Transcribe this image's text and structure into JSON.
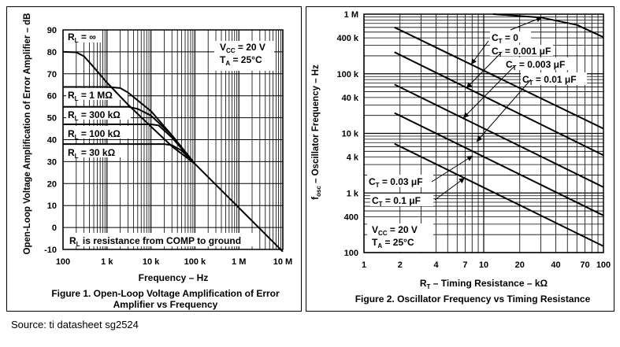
{
  "source": "Source: ti datasheet sg2524",
  "chart_data": [
    {
      "type": "line",
      "caption": [
        "Figure 1. Open-Loop Voltage Amplification of Error",
        "Amplifier vs Frequency"
      ],
      "xlabel": "Frequency – Hz",
      "ylabel": "Open-Loop Voltage Amplification of Error Amplifier – dB",
      "x_scale": "log",
      "xlim": [
        100,
        10000000
      ],
      "ylim": [
        -10,
        90
      ],
      "x_ticks": [
        {
          "v": 100,
          "label": "100"
        },
        {
          "v": 1000,
          "label": "1 k"
        },
        {
          "v": 10000,
          "label": "10 k"
        },
        {
          "v": 100000,
          "label": "100 k"
        },
        {
          "v": 1000000,
          "label": "1 M"
        },
        {
          "v": 10000000,
          "label": "10 M"
        }
      ],
      "y_ticks": [
        -10,
        0,
        10,
        20,
        30,
        40,
        50,
        60,
        70,
        80,
        90
      ],
      "grid": true,
      "series": [
        {
          "name": "RL = ∞",
          "points": [
            [
              100,
              80
            ],
            [
              200,
              79.8
            ],
            [
              300,
              78
            ],
            [
              500,
              73
            ],
            [
              1000,
              66
            ],
            [
              3000,
              56
            ],
            [
              10000,
              46
            ],
            [
              30000,
              37
            ],
            [
              100000,
              29
            ],
            [
              1000000,
              9
            ],
            [
              10000000,
              -11
            ]
          ]
        },
        {
          "name": "RL = 1 MΩ",
          "points": [
            [
              100,
              64
            ],
            [
              1000,
              64
            ],
            [
              2000,
              63.5
            ],
            [
              3000,
              61.5
            ],
            [
              10000,
              53
            ],
            [
              30000,
              42
            ],
            [
              100000,
              29
            ]
          ]
        },
        {
          "name": "RL = 300 kΩ",
          "points": [
            [
              100,
              55
            ],
            [
              3000,
              55
            ],
            [
              5000,
              54
            ],
            [
              10000,
              51
            ],
            [
              30000,
              42
            ],
            [
              100000,
              29
            ]
          ]
        },
        {
          "name": "RL = 100 kΩ",
          "points": [
            [
              100,
              47
            ],
            [
              10000,
              47
            ],
            [
              15000,
              46.5
            ],
            [
              30000,
              41
            ],
            [
              100000,
              29
            ]
          ]
        },
        {
          "name": "RL = 30 kΩ",
          "points": [
            [
              100,
              38
            ],
            [
              20000,
              38
            ],
            [
              30000,
              37.5
            ],
            [
              50000,
              35
            ],
            [
              100000,
              29
            ]
          ]
        }
      ],
      "labels": {
        "rl_inf": [
          "R",
          "L",
          " = ∞"
        ],
        "rl_1m": [
          "R",
          "L",
          " = 1 MΩ"
        ],
        "rl_300k": [
          "R",
          "L",
          " = 300 kΩ"
        ],
        "rl_100k": [
          "R",
          "L",
          " = 100 kΩ"
        ],
        "rl_30k": [
          "R",
          "L",
          " = 30 kΩ"
        ],
        "note": [
          "R",
          "L",
          " is resistance from COMP to ground"
        ],
        "vcc": [
          "V",
          "CC",
          " = 20 V"
        ],
        "ta": [
          "T",
          "A",
          " = 25°C"
        ]
      }
    },
    {
      "type": "line",
      "caption": [
        "Figure 2. Oscillator Frequency vs Timing Resistance"
      ],
      "xlabel": [
        "R",
        "T",
        " – Timing Resistance – kΩ"
      ],
      "ylabel": [
        "f",
        "osc",
        " – Oscillator Frequency – Hz"
      ],
      "x_scale": "log",
      "y_scale": "log",
      "xlim": [
        1,
        100
      ],
      "ylim": [
        100,
        1000000
      ],
      "x_ticks": [
        {
          "v": 1,
          "label": "1"
        },
        {
          "v": 2,
          "label": "2"
        },
        {
          "v": 4,
          "label": "4"
        },
        {
          "v": 7,
          "label": "7"
        },
        {
          "v": 10,
          "label": "10"
        },
        {
          "v": 20,
          "label": "20"
        },
        {
          "v": 40,
          "label": "40"
        },
        {
          "v": 70,
          "label": "70"
        },
        {
          "v": 100,
          "label": "100"
        }
      ],
      "y_ticks": [
        {
          "v": 100,
          "label": "100"
        },
        {
          "v": 400,
          "label": "400"
        },
        {
          "v": 1000,
          "label": "1 k"
        },
        {
          "v": 4000,
          "label": "4 k"
        },
        {
          "v": 10000,
          "label": "10 k"
        },
        {
          "v": 40000,
          "label": "40 k"
        },
        {
          "v": 100000,
          "label": "100 k"
        },
        {
          "v": 400000,
          "label": "400 k"
        },
        {
          "v": 1000000,
          "label": "1 M"
        }
      ],
      "grid": true,
      "series": [
        {
          "name": "CT = 0",
          "points": [
            [
              12,
              1000000
            ],
            [
              30,
              880000
            ],
            [
              60,
              660000
            ],
            [
              100,
              410000
            ]
          ]
        },
        {
          "name": "CT = 0.001 μF",
          "points": [
            [
              1.8,
              600000
            ],
            [
              100,
              12000
            ]
          ]
        },
        {
          "name": "CT = 0.003 μF",
          "points": [
            [
              1.8,
              230000
            ],
            [
              100,
              4300
            ]
          ]
        },
        {
          "name": "CT = 0.01 μF",
          "points": [
            [
              1.8,
              66000
            ],
            [
              100,
              1250
            ]
          ]
        },
        {
          "name": "CT = 0.03 μF",
          "points": [
            [
              1.8,
              22000
            ],
            [
              100,
              420
            ]
          ]
        },
        {
          "name": "CT = 0.1 μF",
          "points": [
            [
              1.8,
              6700
            ],
            [
              100,
              128
            ]
          ]
        }
      ],
      "labels": {
        "ct0": [
          "C",
          "T",
          " = 0"
        ],
        "ct0001": [
          "C",
          "T",
          " = 0.001 μF"
        ],
        "ct0003": [
          "C",
          "T",
          " = 0.003 μF"
        ],
        "ct001": [
          "C",
          "T",
          " = 0.01 μF"
        ],
        "ct003": [
          "C",
          "T",
          " = 0.03 μF"
        ],
        "ct01": [
          "C",
          "T",
          " = 0.1 μF"
        ],
        "vcc": [
          "V",
          "CC",
          " = 20 V"
        ],
        "ta": [
          "T",
          "A",
          " = 25°C"
        ]
      }
    }
  ]
}
